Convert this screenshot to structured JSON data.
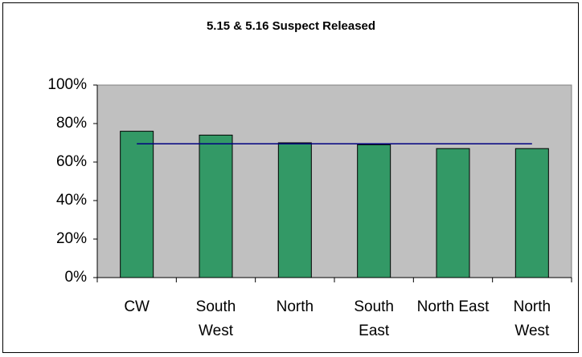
{
  "chart_data": {
    "type": "bar",
    "title": "5.15 & 5.16 Suspect Released",
    "categories": [
      "CW",
      "South West",
      "North",
      "South East",
      "North East",
      "North West"
    ],
    "series": [
      {
        "type": "bar",
        "color": "#339966",
        "values": [
          76,
          74,
          70,
          69,
          67,
          67
        ]
      },
      {
        "type": "line",
        "color": "#000080",
        "values": [
          69.5,
          69.5,
          69.5,
          69.5,
          69.5,
          69.5
        ]
      }
    ],
    "ylim": [
      0,
      100
    ],
    "yticks": [
      {
        "value": 0,
        "label": "0%"
      },
      {
        "value": 20,
        "label": "20%"
      },
      {
        "value": 40,
        "label": "40%"
      },
      {
        "value": 60,
        "label": "60%"
      },
      {
        "value": 80,
        "label": "80%"
      },
      {
        "value": 100,
        "label": "100%"
      }
    ],
    "plot_background": "#c0c0c0"
  }
}
